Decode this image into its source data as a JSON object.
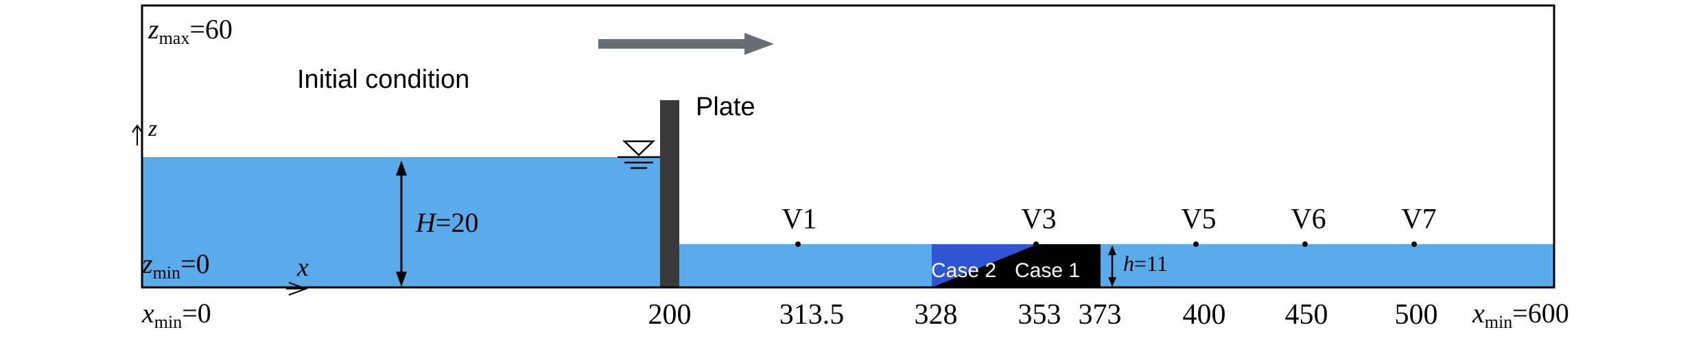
{
  "colors": {
    "water": "#5aabe9",
    "plate": "#3a3a3a",
    "case2": "#2f55d4",
    "case1": "#000000",
    "arrow": "#666f73",
    "frame": "#000000"
  },
  "labels": {
    "zmax_sym": "z",
    "zmax_sub": "max",
    "zmax_val": "=60",
    "zmin_sym": "z",
    "zmin_sub": "min",
    "zmin_val": "=0",
    "initial_condition": "Initial condition",
    "plate": "Plate",
    "z_axis": "z",
    "x_axis": "x",
    "H_sym": "H",
    "H_val": "=20",
    "h_sym": "h",
    "h_val": "=11",
    "case2": "Case 2",
    "case1": "Case 1",
    "xmin_left_sym": "x",
    "xmin_left_sub": "min",
    "xmin_left_val": "=0",
    "xmin_right_sym": "x",
    "xmin_right_sub": "min",
    "xmin_right_val": "=600"
  },
  "probes": [
    "V1",
    "V3",
    "V5",
    "V6",
    "V7"
  ],
  "ticks": [
    "200",
    "313.5",
    "328",
    "353",
    "373",
    "400",
    "450",
    "500"
  ]
}
